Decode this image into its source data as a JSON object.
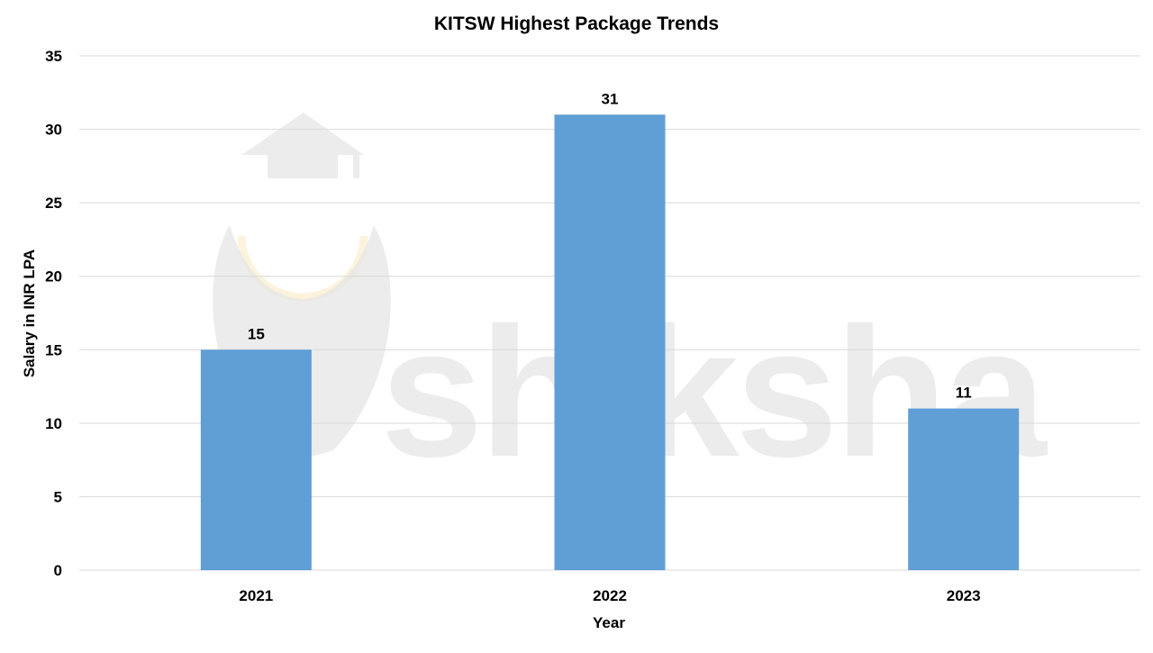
{
  "colors": {
    "bar": "#5b9bd5",
    "gridline": "#d9d9d9",
    "text": "#000000",
    "watermark": "#e6e6e6",
    "watermark_accent": "#fdf3dc"
  },
  "watermark": {
    "text": "shiksha",
    "icon": "graduation-cap-logo-icon"
  },
  "chart_data": {
    "type": "bar",
    "title": "KITSW Highest Package Trends",
    "xlabel": "Year",
    "ylabel": "Salary in INR LPA",
    "categories": [
      "2021",
      "2022",
      "2023"
    ],
    "values": [
      15,
      31,
      11
    ],
    "data_labels": [
      "15",
      "31",
      "11"
    ],
    "ylim": [
      0,
      35
    ],
    "yticks": [
      0,
      5,
      10,
      15,
      20,
      25,
      30,
      35
    ],
    "grid": true,
    "legend": "none"
  }
}
